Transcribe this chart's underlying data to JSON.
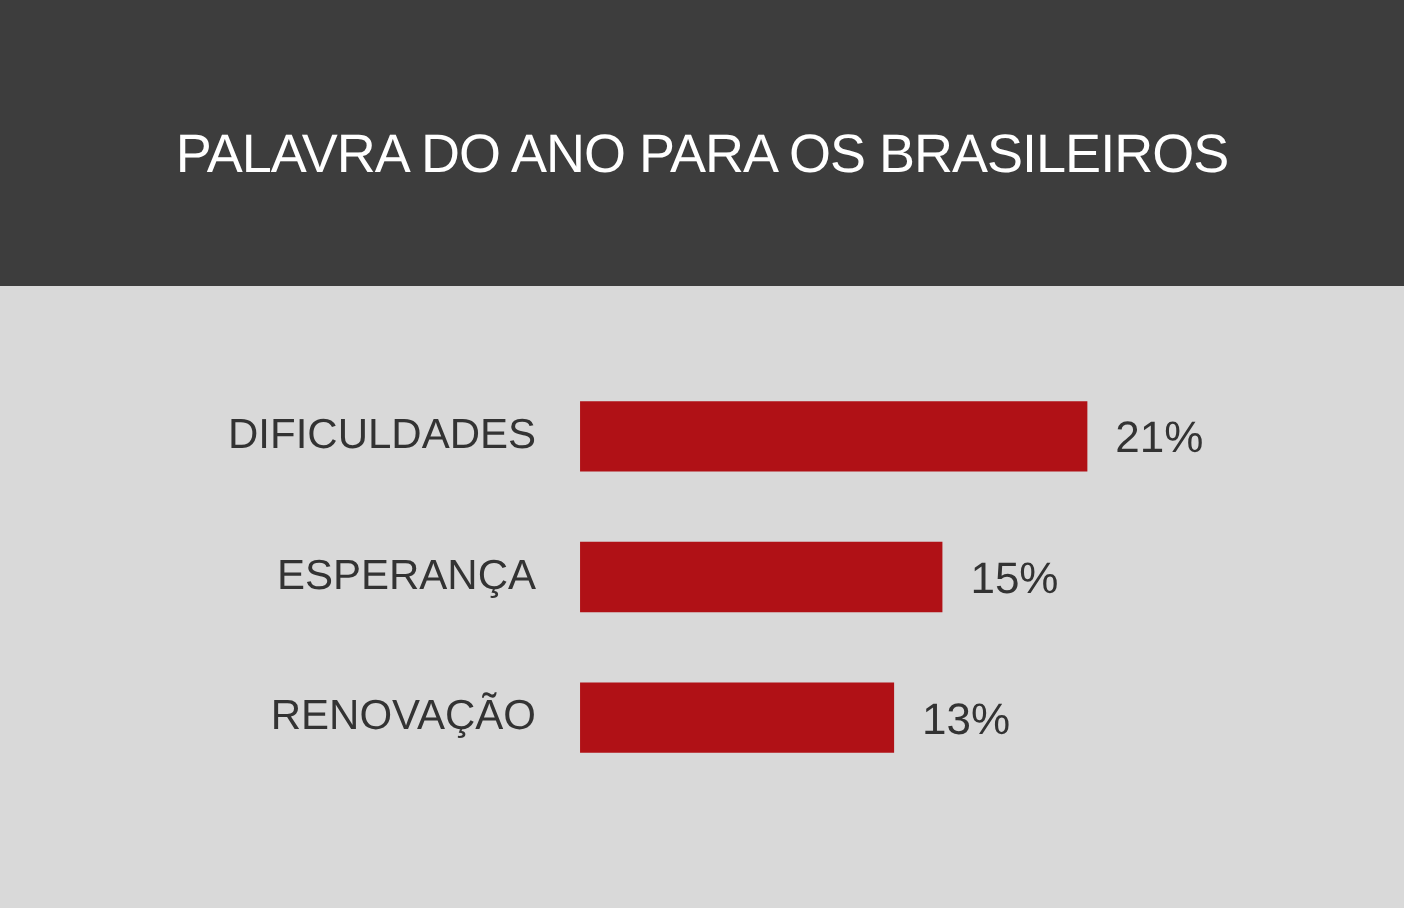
{
  "chart_data": {
    "type": "bar",
    "orientation": "horizontal",
    "title": "PALAVRA DO ANO PARA OS BRASILEIROS",
    "categories": [
      "DIFICULDADES",
      "ESPERANÇA",
      "RENOVAÇÃO"
    ],
    "values": [
      21,
      15,
      13
    ],
    "color": "#b01116",
    "value_labels": [
      "21%",
      "15%",
      "13%"
    ],
    "grid": false,
    "legend": false
  }
}
